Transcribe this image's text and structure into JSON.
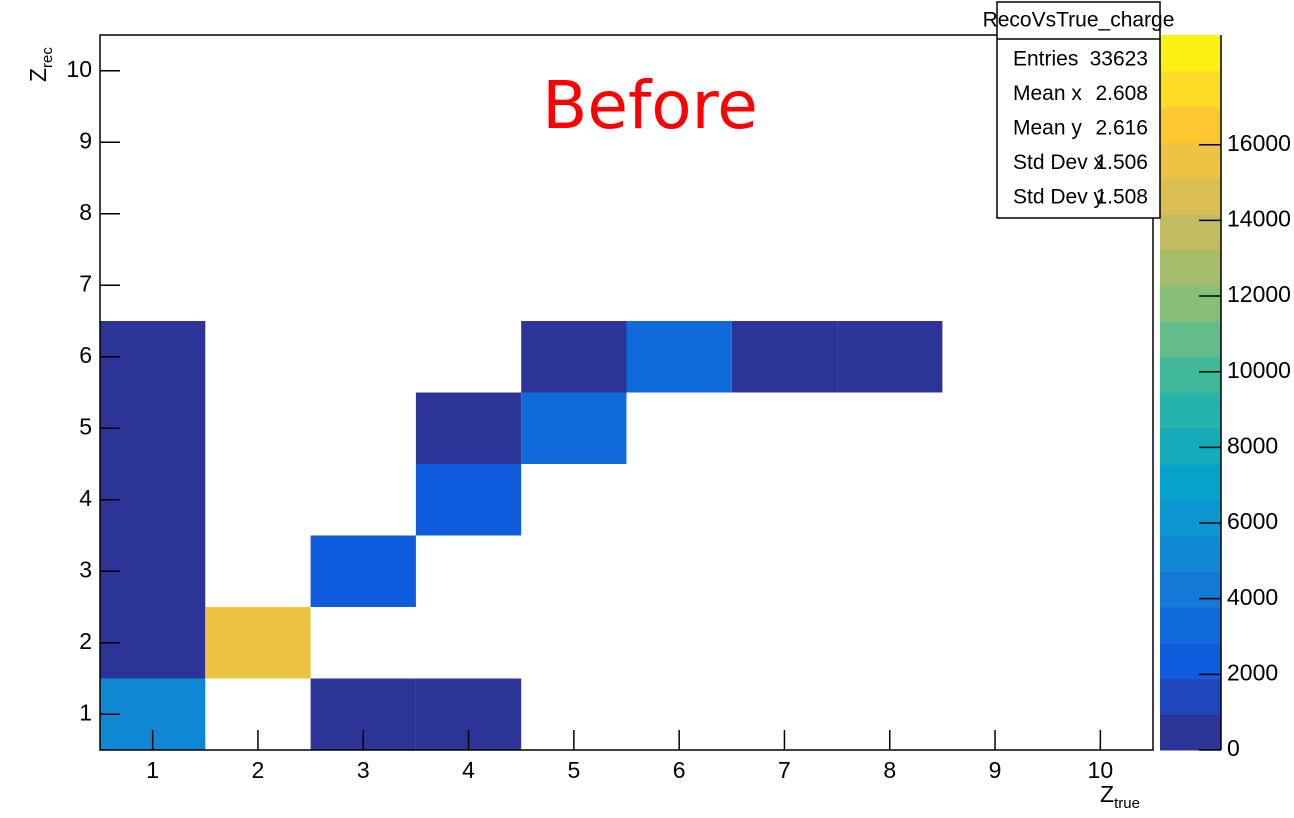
{
  "chart_data": {
    "type": "heatmap",
    "annotation": "Before",
    "xlabel": "Z",
    "xlabel_sub": "true",
    "ylabel": "Z",
    "ylabel_sub": "rec",
    "xlim": [
      0.5,
      10.5
    ],
    "xticks": [
      1,
      2,
      3,
      4,
      5,
      6,
      7,
      8,
      9,
      10
    ],
    "ylim": [
      0.5,
      10.5
    ],
    "yticks": [
      1,
      2,
      3,
      4,
      5,
      6,
      7,
      8,
      9,
      10
    ],
    "zlim": [
      0,
      18900
    ],
    "zticks": [
      0,
      2000,
      4000,
      6000,
      8000,
      10000,
      12000,
      14000,
      16000
    ],
    "colorscale": "bird",
    "cells": [
      {
        "x": 1,
        "y": 1,
        "value": 5200
      },
      {
        "x": 1,
        "y": 2,
        "value": 200
      },
      {
        "x": 1,
        "y": 3,
        "value": 150
      },
      {
        "x": 1,
        "y": 4,
        "value": 150
      },
      {
        "x": 1,
        "y": 5,
        "value": 150
      },
      {
        "x": 1,
        "y": 6,
        "value": 200
      },
      {
        "x": 2,
        "y": 2,
        "value": 16000
      },
      {
        "x": 3,
        "y": 1,
        "value": 100
      },
      {
        "x": 3,
        "y": 3,
        "value": 2400
      },
      {
        "x": 4,
        "y": 1,
        "value": 100
      },
      {
        "x": 4,
        "y": 4,
        "value": 1900
      },
      {
        "x": 4,
        "y": 5,
        "value": 200
      },
      {
        "x": 5,
        "y": 5,
        "value": 3300
      },
      {
        "x": 5,
        "y": 6,
        "value": 150
      },
      {
        "x": 6,
        "y": 6,
        "value": 3300
      },
      {
        "x": 7,
        "y": 6,
        "value": 100
      },
      {
        "x": 8,
        "y": 6,
        "value": 100
      }
    ],
    "stats": {
      "title": "RecoVsTrue_charge",
      "rows": [
        {
          "label": "Entries",
          "value": 33623
        },
        {
          "label": "Mean x",
          "value": 2.608
        },
        {
          "label": "Mean y",
          "value": 2.616
        },
        {
          "label": "Std Dev x",
          "value": 1.506
        },
        {
          "label": "Std Dev y",
          "value": 1.508
        }
      ]
    }
  }
}
